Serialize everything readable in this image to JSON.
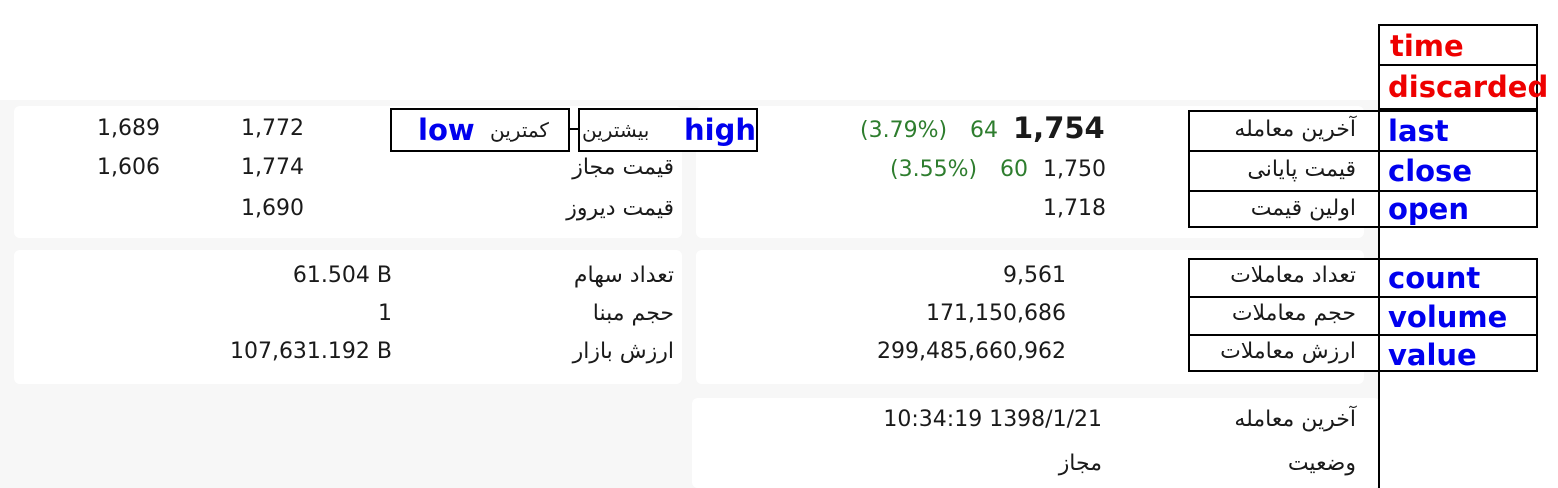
{
  "legend": {
    "time": "time",
    "discarded": "discarded",
    "last": "last",
    "close": "close",
    "open": "open",
    "count": "count",
    "volume": "volume",
    "value": "value",
    "high": "high",
    "low": "low"
  },
  "prices": {
    "last_label": "آخرین معامله",
    "last_value": "1,754",
    "last_change": "64",
    "last_pct": "(3.79%)",
    "close_label": "قیمت پایانی",
    "close_value": "1,750",
    "close_change": "60",
    "close_pct": "(3.55%)",
    "open_label": "اولین قیمت",
    "open_value": "1,718"
  },
  "range": {
    "high_label": "بیشترین",
    "low_label": "کمترین",
    "day_high": "1,772",
    "day_low": "1,689",
    "allowed_label": "قیمت مجاز",
    "allowed_high": "1,774",
    "allowed_low": "1,606",
    "yesterday_label": "قیمت دیروز",
    "yesterday_value": "1,690"
  },
  "trades": {
    "count_label": "تعداد معاملات",
    "count_value": "9,561",
    "volume_label": "حجم معاملات",
    "volume_value": "171,150,686",
    "value_label": "ارزش معاملات",
    "value_value": "299,485,660,962"
  },
  "shares": {
    "shares_label": "تعداد سهام",
    "shares_value": "61.504 B",
    "base_label": "حجم مبنا",
    "base_value": "1",
    "mcap_label": "ارزش بازار",
    "mcap_value": "107,631.192 B"
  },
  "status": {
    "last_trade_label": "آخرین معامله",
    "last_trade_value": "10:34:19 1398/1/21",
    "state_label": "وضعیت",
    "state_value": "مجاز"
  },
  "colors": {
    "change_green": "#2e7d2e",
    "annotation_blue": "#0000ee",
    "annotation_red": "#ee0000",
    "panel_bg": "#f7f7f7"
  }
}
